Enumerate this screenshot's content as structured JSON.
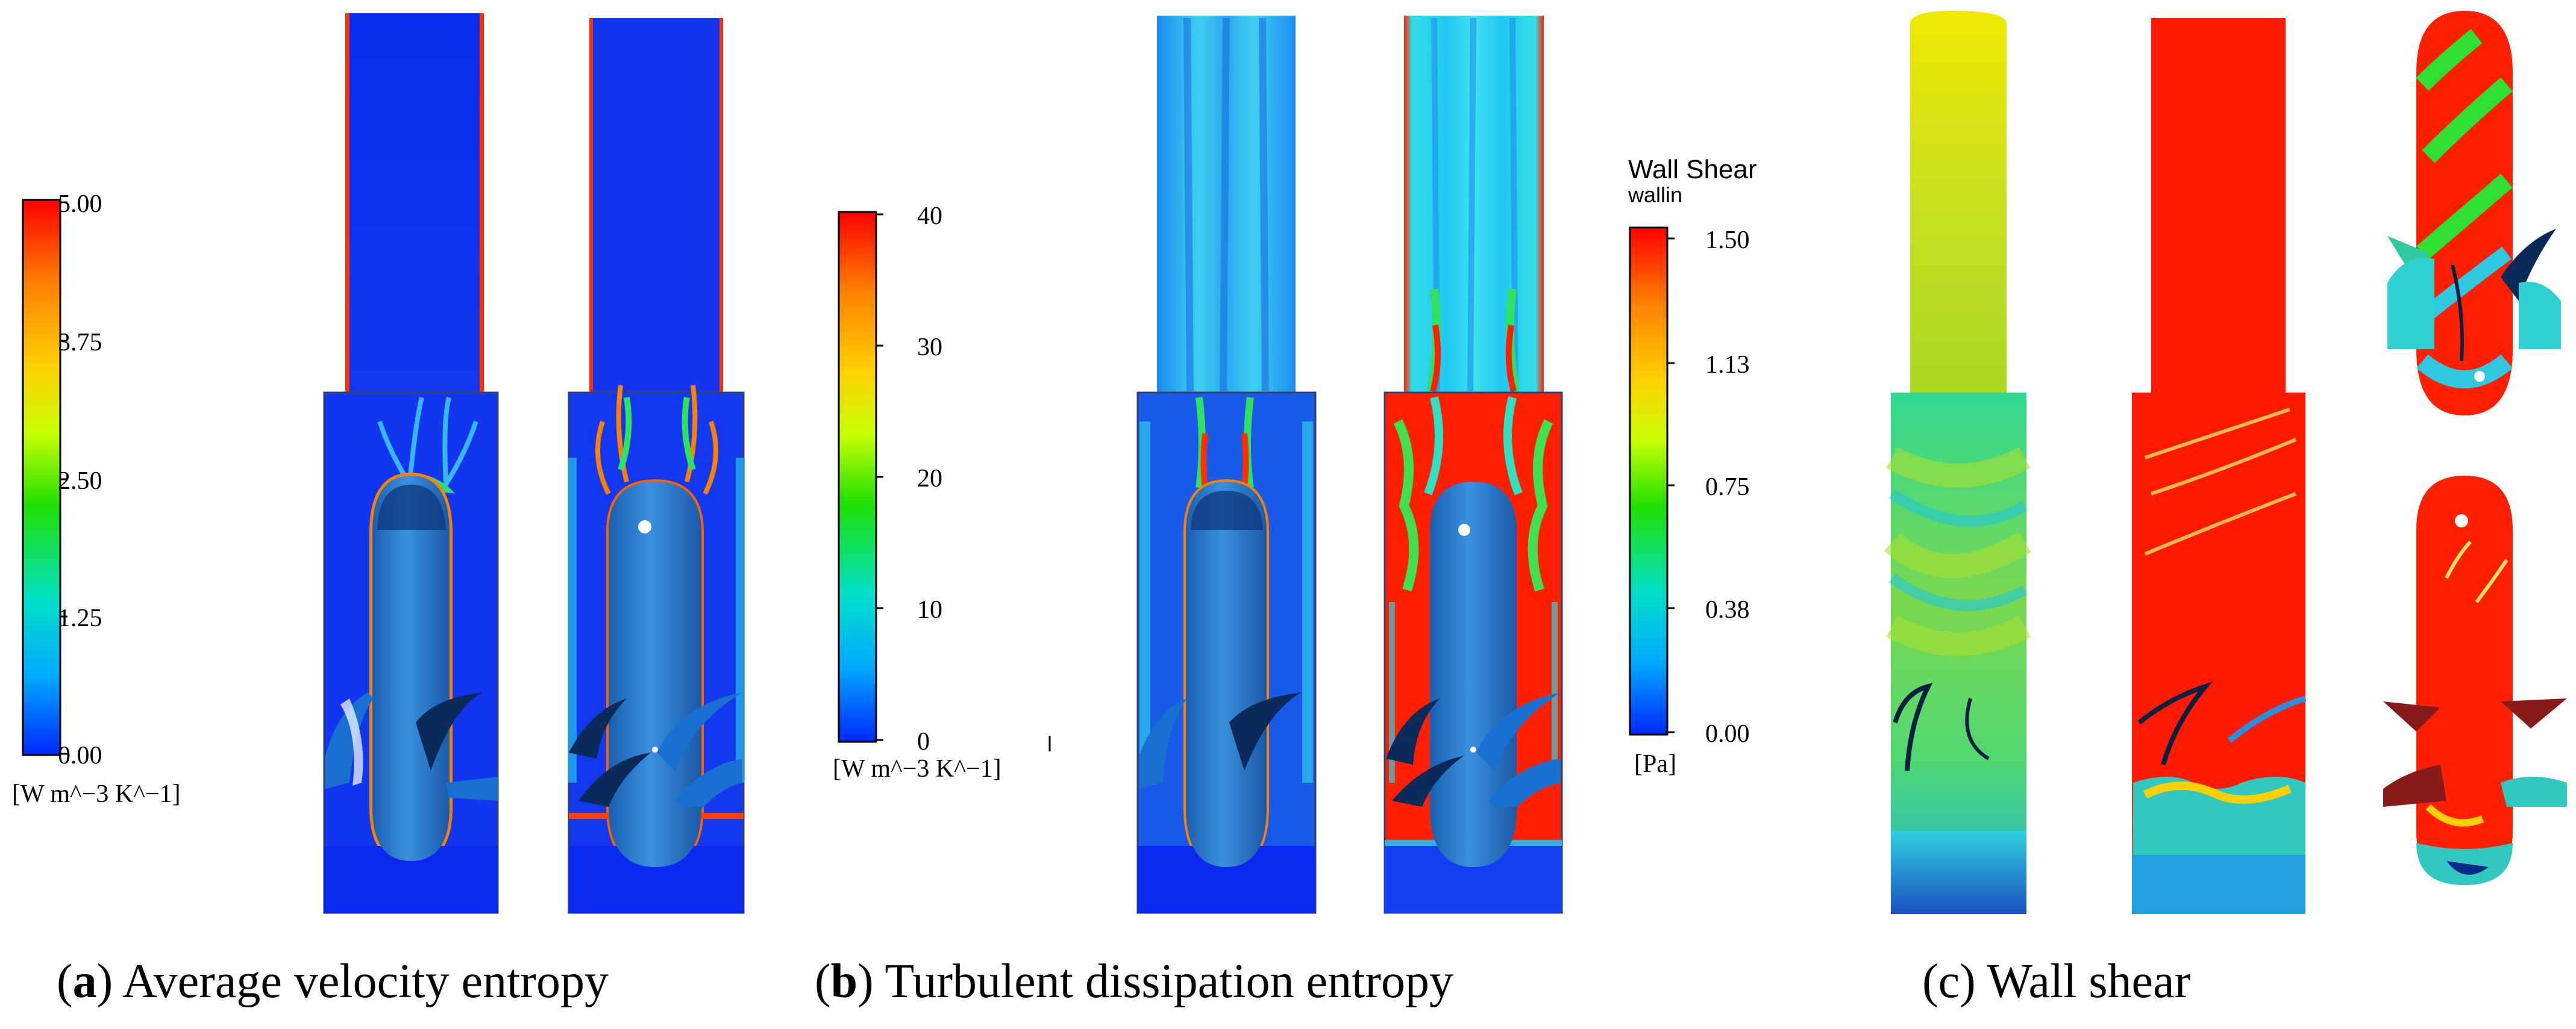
{
  "colorbars": {
    "a": {
      "ticks": [
        "5.00",
        "3.75",
        "2.50",
        "1.25",
        "0.00"
      ],
      "unit": "[W m^−3 K^−1]"
    },
    "b": {
      "ticks": [
        "40",
        "30",
        "20",
        "10",
        "0"
      ],
      "unit": "[W m^−3 K^−1]"
    },
    "c": {
      "title": "Wall Shear",
      "subtitle": "wallin",
      "ticks": [
        "1.50",
        "1.13",
        "0.75",
        "0.38",
        "0.00"
      ],
      "unit": "[Pa]"
    }
  },
  "captions": {
    "a": {
      "letter": "a",
      "text": " Average velocity entropy"
    },
    "b": {
      "letter": "b",
      "text": " Turbulent dissipation entropy"
    },
    "c": {
      "letter": "c",
      "text": " Wall shear"
    }
  },
  "colors": {
    "rainbow": [
      "#ff0000",
      "#ff8000",
      "#ffd000",
      "#c8ff00",
      "#20e000",
      "#00e0c8",
      "#00a8ff",
      "#0028ff"
    ],
    "background_blue": "#1430f0",
    "rotor_blue": "#2a7fd6",
    "wall_red": "#ff1a00"
  }
}
